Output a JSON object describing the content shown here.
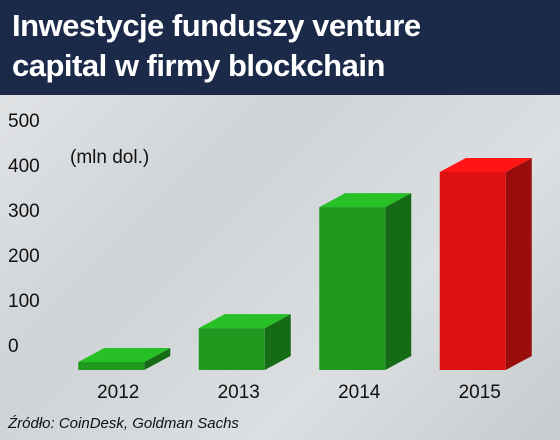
{
  "chart_data": {
    "type": "bar3d",
    "title": "Inwestycje funduszy venture capital w firmy blockchain",
    "unit_label": "(mln dol.)",
    "source": "Źródło: CoinDesk, Goldman Sachs",
    "categories": [
      "2012",
      "2013",
      "2014",
      "2015"
    ],
    "values": [
      2,
      93,
      362,
      440
    ],
    "colors": [
      "#1f9a1f",
      "#1f9a1f",
      "#1f9a1f",
      "#dd1111"
    ],
    "ylim": [
      0,
      500
    ],
    "yticks": [
      0,
      100,
      200,
      300,
      400,
      500
    ]
  }
}
